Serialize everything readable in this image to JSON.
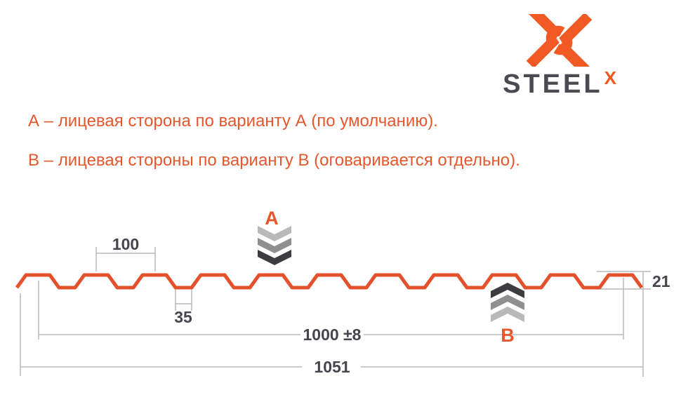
{
  "logo": {
    "brand": "STEEL",
    "brand_sup": "X"
  },
  "notes": {
    "variant_a": "А – лицевая сторона по варианту А (по умолчанию).",
    "variant_b": "В – лицевая стороны по варианту В (оговаривается отдельно)."
  },
  "diagram": {
    "marker_a": "А",
    "marker_b": "В",
    "dimensions": {
      "pitch": "100",
      "valley_width": "35",
      "profile_height": "21",
      "working_width": "1000 ±8",
      "overall_width": "1051"
    }
  },
  "colors": {
    "accent": "#E7572E",
    "profile": "#E2512B",
    "dim-line": "#B9B9B9",
    "dim-text": "#45454E",
    "logo-orange": "#F15A24",
    "logo-dark": "#4A4A52",
    "chev-light": "#B9B9B9",
    "chev-mid": "#8F8F8F",
    "chev-dark": "#3D3D40"
  }
}
